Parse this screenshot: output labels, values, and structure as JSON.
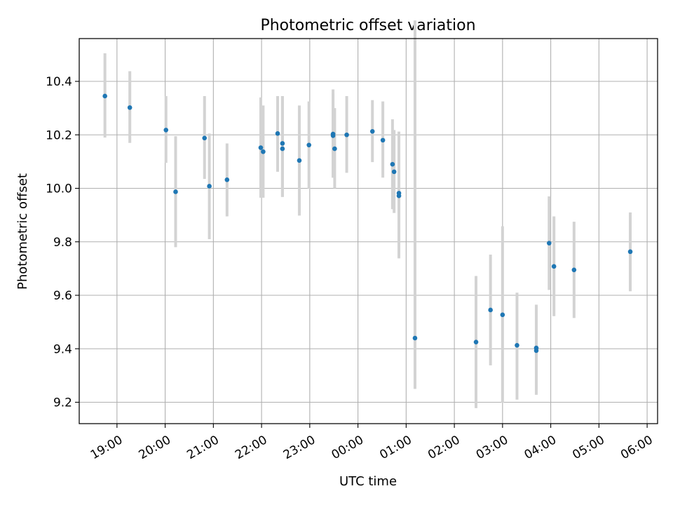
{
  "chart_data": {
    "type": "scatter",
    "title": "Photometric offset variation",
    "xlabel": "UTC time",
    "ylabel": "Photometric offset",
    "x_tick_labels": [
      "19:00",
      "20:00",
      "21:00",
      "22:00",
      "23:00",
      "00:00",
      "01:00",
      "02:00",
      "03:00",
      "04:00",
      "05:00",
      "06:00"
    ],
    "y_ticks": [
      9.2,
      9.4,
      9.6,
      9.8,
      10.0,
      10.2,
      10.4
    ],
    "y_tick_labels": [
      "9.2",
      "9.4",
      "9.6",
      "9.8",
      "10.0",
      "10.2",
      "10.4"
    ],
    "ylim": [
      9.12,
      10.56
    ],
    "xlim": [
      "18:13",
      "06:13"
    ],
    "grid": true,
    "point_color": "#1f77b4",
    "errorbar_color": "#d3d3d3",
    "points": [
      {
        "x": "18:45",
        "y": 10.345,
        "ylow": 10.19,
        "yhigh": 10.505
      },
      {
        "x": "19:16",
        "y": 10.302,
        "ylow": 10.17,
        "yhigh": 10.438
      },
      {
        "x": "20:01",
        "y": 10.218,
        "ylow": 10.095,
        "yhigh": 10.345
      },
      {
        "x": "20:13",
        "y": 9.987,
        "ylow": 9.78,
        "yhigh": 10.195
      },
      {
        "x": "20:49",
        "y": 10.188,
        "ylow": 10.035,
        "yhigh": 10.345
      },
      {
        "x": "20:55",
        "y": 10.008,
        "ylow": 9.81,
        "yhigh": 10.205
      },
      {
        "x": "21:17",
        "y": 10.032,
        "ylow": 9.895,
        "yhigh": 10.168
      },
      {
        "x": "21:59",
        "y": 10.152,
        "ylow": 9.965,
        "yhigh": 10.34
      },
      {
        "x": "22:02",
        "y": 10.137,
        "ylow": 9.965,
        "yhigh": 10.31
      },
      {
        "x": "22:20",
        "y": 10.205,
        "ylow": 10.062,
        "yhigh": 10.345
      },
      {
        "x": "22:26",
        "y": 10.168,
        "ylow": 9.968,
        "yhigh": 10.345
      },
      {
        "x": "22:26",
        "y": 10.148,
        "ylow": 9.968,
        "yhigh": 10.345
      },
      {
        "x": "22:47",
        "y": 10.104,
        "ylow": 9.898,
        "yhigh": 10.31
      },
      {
        "x": "22:59",
        "y": 10.162,
        "ylow": 9.998,
        "yhigh": 10.325
      },
      {
        "x": "23:29",
        "y": 10.203,
        "ylow": 10.04,
        "yhigh": 10.37
      },
      {
        "x": "23:29",
        "y": 10.197,
        "ylow": 10.04,
        "yhigh": 10.355
      },
      {
        "x": "23:31",
        "y": 10.148,
        "ylow": 10.0,
        "yhigh": 10.3
      },
      {
        "x": "23:46",
        "y": 10.2,
        "ylow": 10.058,
        "yhigh": 10.345
      },
      {
        "x": "00:18",
        "y": 10.213,
        "ylow": 10.098,
        "yhigh": 10.33
      },
      {
        "x": "00:31",
        "y": 10.18,
        "ylow": 10.04,
        "yhigh": 10.325
      },
      {
        "x": "00:43",
        "y": 10.09,
        "ylow": 9.922,
        "yhigh": 10.258
      },
      {
        "x": "00:45",
        "y": 10.062,
        "ylow": 9.908,
        "yhigh": 10.218
      },
      {
        "x": "00:51",
        "y": 9.982,
        "ylow": 9.788,
        "yhigh": 10.208
      },
      {
        "x": "00:51",
        "y": 9.972,
        "ylow": 9.738,
        "yhigh": 10.212
      },
      {
        "x": "01:11",
        "y": 9.44,
        "ylow": 9.25,
        "yhigh": 10.628
      },
      {
        "x": "02:27",
        "y": 9.425,
        "ylow": 9.178,
        "yhigh": 9.672
      },
      {
        "x": "02:45",
        "y": 9.545,
        "ylow": 9.338,
        "yhigh": 9.752
      },
      {
        "x": "03:00",
        "y": 9.527,
        "ylow": 9.198,
        "yhigh": 9.858
      },
      {
        "x": "03:18",
        "y": 9.413,
        "ylow": 9.21,
        "yhigh": 9.61
      },
      {
        "x": "03:42",
        "y": 9.403,
        "ylow": 9.25,
        "yhigh": 9.56
      },
      {
        "x": "03:42",
        "y": 9.393,
        "ylow": 9.228,
        "yhigh": 9.565
      },
      {
        "x": "03:58",
        "y": 9.795,
        "ylow": 9.62,
        "yhigh": 9.97
      },
      {
        "x": "04:04",
        "y": 9.708,
        "ylow": 9.522,
        "yhigh": 9.895
      },
      {
        "x": "04:29",
        "y": 9.695,
        "ylow": 9.515,
        "yhigh": 9.875
      },
      {
        "x": "05:39",
        "y": 9.763,
        "ylow": 9.615,
        "yhigh": 9.91
      }
    ]
  }
}
